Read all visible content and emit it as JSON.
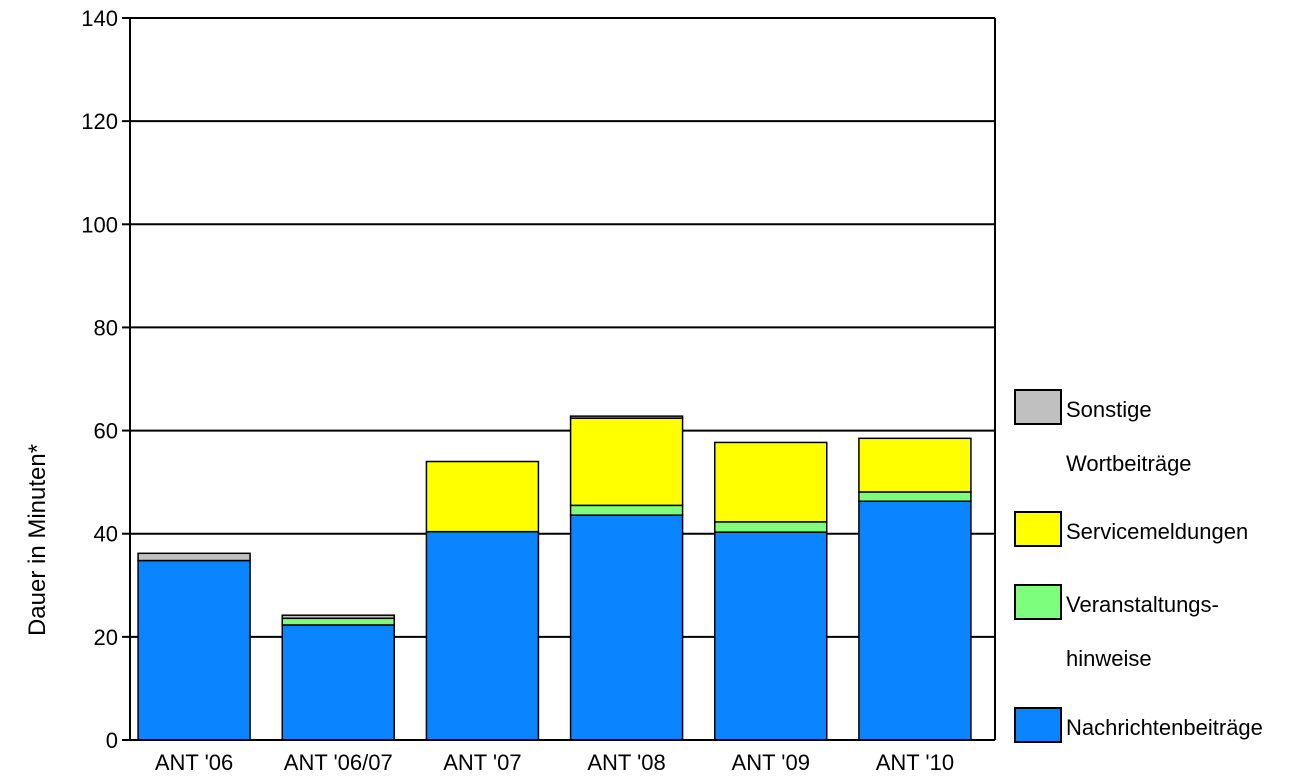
{
  "chart_data": {
    "type": "bar",
    "stacked": true,
    "title": "",
    "xlabel": "",
    "ylabel": "Dauer in Minuten*",
    "ylim": [
      0,
      140
    ],
    "yticks": [
      0,
      20,
      40,
      60,
      80,
      100,
      120,
      140
    ],
    "grid": true,
    "legend_position": "right",
    "categories": [
      "ANT '06",
      "ANT '06/07",
      "ANT '07",
      "ANT '08",
      "ANT '09",
      "ANT '10"
    ],
    "series": [
      {
        "name": "Nachrichtenbeiträge",
        "color": "#0a84ff",
        "values": [
          34.8,
          22.3,
          40.4,
          43.6,
          40.3,
          46.3
        ]
      },
      {
        "name": "Veranstaltungs- hinweise",
        "color": "#7dff7d",
        "values": [
          0,
          1.3,
          0,
          1.9,
          2,
          1.8
        ]
      },
      {
        "name": "Servicemeldungen",
        "color": "#ffff00",
        "values": [
          0,
          0,
          13.6,
          16.9,
          15.4,
          10.4
        ]
      },
      {
        "name": "Sonstige Wortbeiträge",
        "color": "#c0c0c0",
        "values": [
          1.4,
          0.6,
          0,
          0.4,
          0,
          0
        ]
      }
    ],
    "legend": [
      {
        "lines": [
          "Sonstige",
          "Wortbeiträge"
        ],
        "color": "#c0c0c0"
      },
      {
        "lines": [
          "Servicemeldungen"
        ],
        "color": "#ffff00"
      },
      {
        "lines": [
          "Veranstaltungs-",
          "hinweise"
        ],
        "color": "#7dff7d"
      },
      {
        "lines": [
          "Nachrichtenbeiträge"
        ],
        "color": "#0a84ff"
      }
    ]
  }
}
